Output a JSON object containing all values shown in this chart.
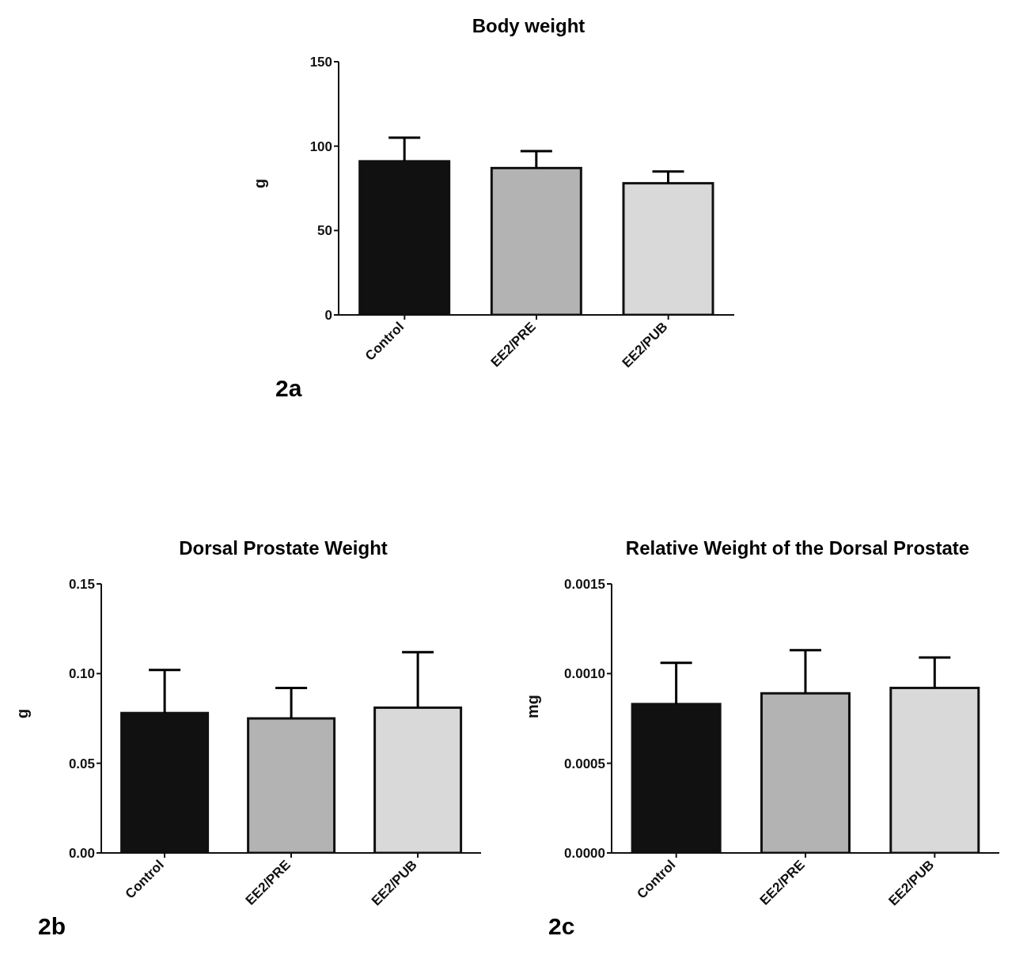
{
  "chart_data": [
    {
      "type": "bar",
      "title": "Body weight",
      "ylabel": "g",
      "categories": [
        "Control",
        "EE2/PRE",
        "EE2/PUB"
      ],
      "values": [
        91,
        87,
        78
      ],
      "errors": [
        [
          91,
          105
        ],
        [
          87,
          97
        ],
        [
          78,
          85
        ]
      ],
      "colors": [
        "#111111",
        "#b3b3b3",
        "#d9d9d9"
      ],
      "ylim": [
        0,
        150
      ],
      "yticks": [
        0,
        50,
        100,
        150
      ],
      "grid": false,
      "annotations": [
        "2a"
      ]
    },
    {
      "type": "bar",
      "title": "Dorsal Prostate Weight",
      "ylabel": "g",
      "categories": [
        "Control",
        "EE2/PRE",
        "EE2/PUB"
      ],
      "values": [
        0.078,
        0.075,
        0.081
      ],
      "errors": [
        [
          0.078,
          0.102
        ],
        [
          0.075,
          0.092
        ],
        [
          0.081,
          0.112
        ]
      ],
      "colors": [
        "#111111",
        "#b3b3b3",
        "#d9d9d9"
      ],
      "ylim": [
        0,
        0.15
      ],
      "yticks": [
        {
          "value": 0,
          "label": "0.00"
        },
        0.05,
        {
          "value": 0.1,
          "label": "0.10"
        },
        0.15
      ],
      "grid": false,
      "annotations": [
        "2b"
      ]
    },
    {
      "type": "bar",
      "title": "Relative Weight of the Dorsal Prostate",
      "ylabel": "mg",
      "categories": [
        "Control",
        "EE2/PRE",
        "EE2/PUB"
      ],
      "values": [
        0.00083,
        0.00089,
        0.00092
      ],
      "errors": [
        [
          0.00083,
          0.00106
        ],
        [
          0.00089,
          0.00113
        ],
        [
          0.00092,
          0.00109
        ]
      ],
      "colors": [
        "#111111",
        "#b3b3b3",
        "#d9d9d9"
      ],
      "ylim": [
        0,
        0.0015
      ],
      "yticks": [
        {
          "value": 0,
          "label": "0.0000"
        },
        0.0005,
        {
          "value": 0.001,
          "label": "0.0010"
        },
        0.0015
      ],
      "grid": false,
      "annotations": [
        "2c"
      ]
    }
  ]
}
